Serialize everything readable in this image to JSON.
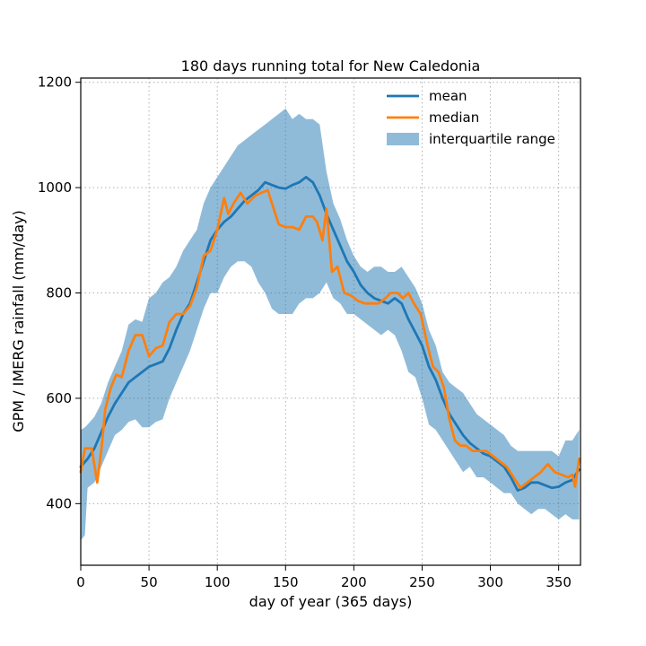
{
  "chart_data": {
    "type": "line",
    "title": "180 days running total for New Caledonia",
    "xlabel": "day of year (365 days)",
    "ylabel": "GPM / IMERG rainfall (mm/day)",
    "xlim": [
      0,
      366
    ],
    "ylim": [
      283,
      1208
    ],
    "xticks": [
      0,
      50,
      100,
      150,
      200,
      250,
      300,
      350
    ],
    "yticks": [
      400,
      600,
      800,
      1000,
      1200
    ],
    "grid": true,
    "legend_position": "top-right",
    "colors": {
      "mean": "#1f77b4",
      "median": "#ff7f0e",
      "iqr": "#1f77b4"
    },
    "series": [
      {
        "name": "mean",
        "type": "line",
        "x": [
          0,
          5,
          10,
          15,
          20,
          25,
          30,
          35,
          40,
          45,
          50,
          55,
          60,
          65,
          70,
          75,
          80,
          85,
          90,
          95,
          100,
          105,
          110,
          115,
          120,
          125,
          130,
          135,
          140,
          145,
          150,
          155,
          160,
          165,
          170,
          175,
          180,
          185,
          190,
          195,
          200,
          205,
          210,
          215,
          220,
          225,
          230,
          235,
          240,
          245,
          250,
          255,
          260,
          265,
          270,
          275,
          280,
          285,
          290,
          295,
          300,
          305,
          310,
          315,
          320,
          325,
          330,
          335,
          340,
          345,
          350,
          355,
          360,
          365
        ],
        "values": [
          470,
          485,
          505,
          535,
          565,
          590,
          610,
          630,
          640,
          650,
          660,
          665,
          670,
          695,
          730,
          760,
          780,
          820,
          860,
          900,
          920,
          935,
          945,
          960,
          975,
          985,
          995,
          1010,
          1005,
          1000,
          998,
          1005,
          1010,
          1020,
          1010,
          985,
          950,
          920,
          890,
          860,
          840,
          815,
          800,
          790,
          785,
          780,
          790,
          780,
          750,
          725,
          700,
          660,
          635,
          600,
          570,
          550,
          530,
          515,
          505,
          495,
          490,
          480,
          470,
          450,
          425,
          430,
          440,
          440,
          435,
          430,
          432,
          440,
          445,
          465
        ]
      },
      {
        "name": "median",
        "type": "line",
        "x": [
          0,
          3,
          8,
          12,
          15,
          18,
          22,
          26,
          30,
          35,
          40,
          45,
          50,
          55,
          60,
          65,
          70,
          75,
          80,
          85,
          90,
          95,
          100,
          105,
          108,
          112,
          117,
          122,
          128,
          132,
          137,
          140,
          145,
          150,
          155,
          160,
          165,
          170,
          173,
          177,
          180,
          184,
          188,
          193,
          198,
          203,
          208,
          213,
          218,
          223,
          227,
          232,
          236,
          240,
          244,
          249,
          254,
          258,
          262,
          266,
          270,
          274,
          278,
          282,
          287,
          292,
          297,
          302,
          307,
          312,
          317,
          322,
          327,
          332,
          337,
          342,
          347,
          352,
          357,
          360,
          362,
          365
        ],
        "values": [
          460,
          505,
          505,
          440,
          500,
          580,
          620,
          645,
          640,
          690,
          720,
          720,
          680,
          695,
          700,
          745,
          760,
          760,
          775,
          810,
          870,
          880,
          920,
          980,
          950,
          970,
          990,
          970,
          985,
          990,
          995,
          970,
          930,
          925,
          925,
          920,
          945,
          945,
          935,
          900,
          960,
          840,
          850,
          800,
          795,
          785,
          780,
          780,
          780,
          790,
          800,
          800,
          790,
          800,
          780,
          760,
          700,
          660,
          650,
          620,
          560,
          520,
          510,
          510,
          500,
          500,
          500,
          490,
          480,
          470,
          450,
          430,
          440,
          450,
          460,
          475,
          460,
          455,
          450,
          455,
          432,
          485
        ]
      },
      {
        "name": "interquartile range",
        "type": "band",
        "x": [
          0,
          3,
          5,
          10,
          15,
          20,
          25,
          30,
          35,
          40,
          45,
          50,
          55,
          60,
          65,
          70,
          75,
          80,
          85,
          90,
          95,
          100,
          105,
          110,
          115,
          120,
          125,
          130,
          135,
          140,
          145,
          150,
          155,
          160,
          165,
          170,
          175,
          180,
          185,
          190,
          195,
          200,
          205,
          210,
          215,
          220,
          225,
          230,
          235,
          240,
          245,
          250,
          255,
          260,
          265,
          270,
          275,
          280,
          285,
          290,
          295,
          300,
          305,
          310,
          315,
          320,
          325,
          330,
          335,
          340,
          345,
          350,
          355,
          360,
          365
        ],
        "lower": [
          330,
          340,
          430,
          440,
          470,
          500,
          530,
          540,
          555,
          560,
          545,
          545,
          555,
          560,
          600,
          630,
          660,
          690,
          730,
          770,
          800,
          800,
          830,
          850,
          860,
          860,
          850,
          820,
          800,
          770,
          760,
          760,
          760,
          780,
          790,
          790,
          800,
          820,
          790,
          780,
          760,
          760,
          750,
          740,
          730,
          720,
          730,
          720,
          690,
          650,
          640,
          600,
          550,
          540,
          520,
          500,
          480,
          460,
          470,
          450,
          450,
          440,
          430,
          420,
          420,
          400,
          390,
          380,
          390,
          390,
          380,
          370,
          380,
          370,
          370
        ],
        "upper": [
          540,
          545,
          550,
          565,
          590,
          630,
          660,
          690,
          740,
          750,
          745,
          790,
          800,
          820,
          830,
          850,
          880,
          900,
          920,
          970,
          1000,
          1020,
          1040,
          1060,
          1080,
          1090,
          1100,
          1110,
          1120,
          1130,
          1140,
          1150,
          1130,
          1140,
          1130,
          1130,
          1120,
          1030,
          970,
          940,
          900,
          870,
          850,
          840,
          850,
          850,
          840,
          840,
          850,
          830,
          810,
          780,
          730,
          700,
          650,
          630,
          620,
          610,
          590,
          570,
          560,
          550,
          540,
          530,
          510,
          500,
          500,
          500,
          500,
          500,
          500,
          490,
          520,
          520,
          540
        ]
      }
    ]
  }
}
